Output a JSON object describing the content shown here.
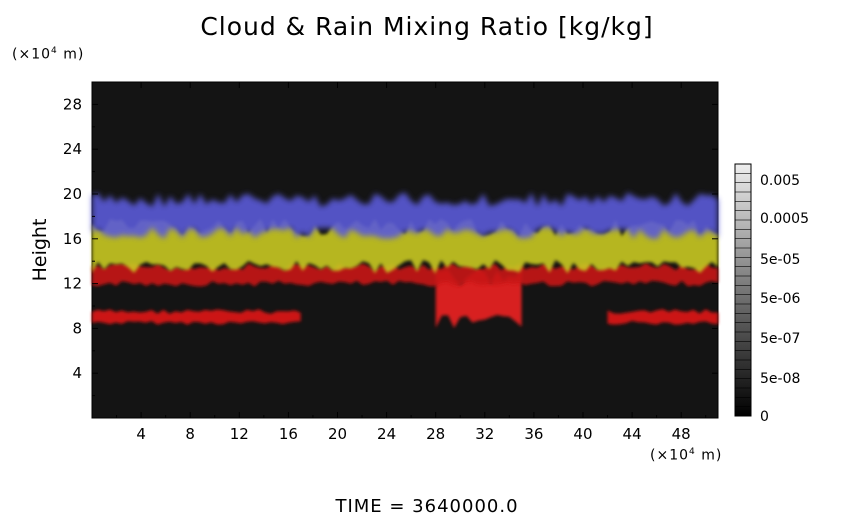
{
  "chart_data": {
    "type": "heatmap",
    "title": "Cloud & Rain Mixing Ratio [kg/kg]",
    "ylabel": "Height",
    "x_unit": "(×10⁴ m)",
    "y_unit": "(×10⁴ m)",
    "x_unit_base": "(×10",
    "x_unit_exp": "4",
    "x_unit_tail": " m)",
    "y_unit_base": "(×10",
    "y_unit_exp": "4",
    "y_unit_tail": " m)",
    "xlim": [
      0,
      51
    ],
    "ylim": [
      0,
      30
    ],
    "x_ticks": [
      "4",
      "8",
      "12",
      "16",
      "20",
      "24",
      "28",
      "32",
      "36",
      "40",
      "44",
      "48"
    ],
    "y_ticks": [
      "4",
      "8",
      "12",
      "16",
      "20",
      "24",
      "28"
    ],
    "colorbar": {
      "labels": [
        "0.005",
        "0.0005",
        "5e-05",
        "5e-06",
        "5e-07",
        "5e-08",
        "0"
      ]
    },
    "layers": [
      {
        "kind": "rain-low",
        "color": "#e01818",
        "x_range": [
          0,
          17
        ],
        "y_range": [
          8.5,
          9.5
        ]
      },
      {
        "kind": "rain-low",
        "color": "#e01818",
        "x_range": [
          42,
          51
        ],
        "y_range": [
          8.5,
          9.5
        ]
      },
      {
        "kind": "rain-core",
        "color": "#ee2020",
        "x_range": [
          28,
          35
        ],
        "y_range": [
          8.5,
          12.5
        ]
      },
      {
        "kind": "rain-band",
        "color": "#c81414",
        "x_range": [
          0,
          51
        ],
        "y_range": [
          12,
          13.5
        ]
      },
      {
        "kind": "cloud-yellow",
        "color": "#c8c820",
        "x_range": [
          0,
          51
        ],
        "y_range": [
          13.5,
          17
        ]
      },
      {
        "kind": "cloud-blue",
        "color": "#5a5ad8",
        "x_range": [
          0,
          51
        ],
        "y_range": [
          16.5,
          19.5
        ]
      }
    ],
    "footer": "TIME = 3640000.0"
  }
}
